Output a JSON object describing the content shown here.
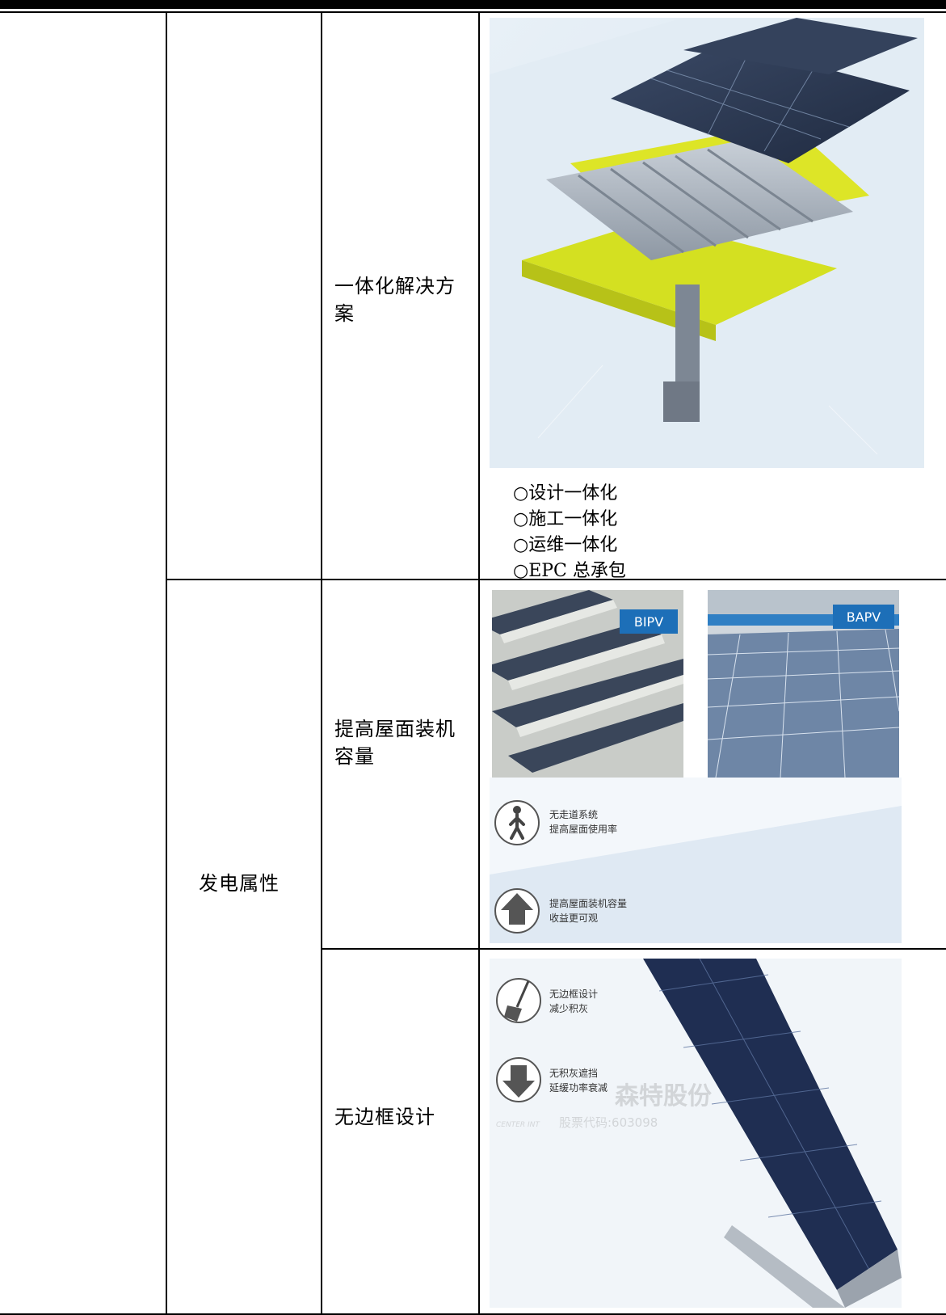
{
  "table": {
    "row1": {
      "sub_item": "一体化解决方案",
      "bullets": [
        "○设计一体化",
        "○施工一体化",
        "○运维一体化",
        "○EPC 总承包"
      ]
    },
    "row2": {
      "category": "发电属性",
      "sub_item": "提高屋面装机容量",
      "badge_left": "BIPV",
      "badge_right": "BAPV",
      "feature1_line1": "无走道系统",
      "feature1_line2": "提高屋面使用率",
      "feature2_line1": "提高屋面装机容量",
      "feature2_line2": "收益更可观"
    },
    "row3": {
      "sub_item": "无边框设计",
      "feature1_line1": "无边框设计",
      "feature1_line2": "减少积灰",
      "feature2_line1": "无积灰遮挡",
      "feature2_line2": "延缓功率衰减",
      "watermark_name": "森特股份",
      "watermark_brand": "CENTER INT",
      "watermark_code": "股票代码:603098"
    }
  },
  "colors": {
    "badge_blue": "#1d6fb8",
    "panel_dark": "#2a3550",
    "insulation_yellow": "#d4e021"
  }
}
